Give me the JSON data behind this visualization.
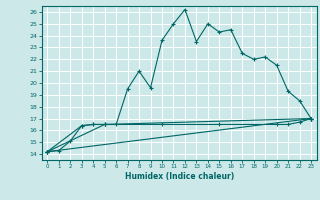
{
  "title": "",
  "xlabel": "Humidex (Indice chaleur)",
  "bg_color": "#cce8e8",
  "grid_color": "#ffffff",
  "line_color": "#006666",
  "xlim": [
    -0.5,
    23.5
  ],
  "ylim": [
    13.5,
    26.5
  ],
  "x_ticks": [
    0,
    1,
    2,
    3,
    4,
    5,
    6,
    7,
    8,
    9,
    10,
    11,
    12,
    13,
    14,
    15,
    16,
    17,
    18,
    19,
    20,
    21,
    22,
    23
  ],
  "y_ticks": [
    14,
    15,
    16,
    17,
    18,
    19,
    20,
    21,
    22,
    23,
    24,
    25,
    26
  ],
  "series1_x": [
    0,
    1,
    2,
    3,
    4,
    5,
    6,
    7,
    8,
    9,
    10,
    11,
    12,
    13,
    14,
    15,
    16,
    17,
    18,
    19,
    20,
    21,
    22,
    23
  ],
  "series1_y": [
    14.2,
    14.3,
    15.1,
    16.4,
    16.5,
    16.5,
    16.5,
    19.5,
    21.0,
    19.6,
    23.6,
    25.0,
    26.2,
    23.5,
    25.0,
    24.3,
    24.5,
    22.5,
    22.0,
    22.2,
    21.5,
    19.3,
    18.5,
    17.0
  ],
  "series2_x": [
    0,
    3,
    4,
    5,
    23
  ],
  "series2_y": [
    14.2,
    16.4,
    16.5,
    16.5,
    17.0
  ],
  "series3_x": [
    0,
    23
  ],
  "series3_y": [
    14.2,
    17.0
  ],
  "series4_x": [
    0,
    5,
    10,
    15,
    20,
    21,
    22,
    23
  ],
  "series4_y": [
    14.2,
    16.5,
    16.5,
    16.5,
    16.5,
    16.5,
    16.7,
    17.0
  ]
}
